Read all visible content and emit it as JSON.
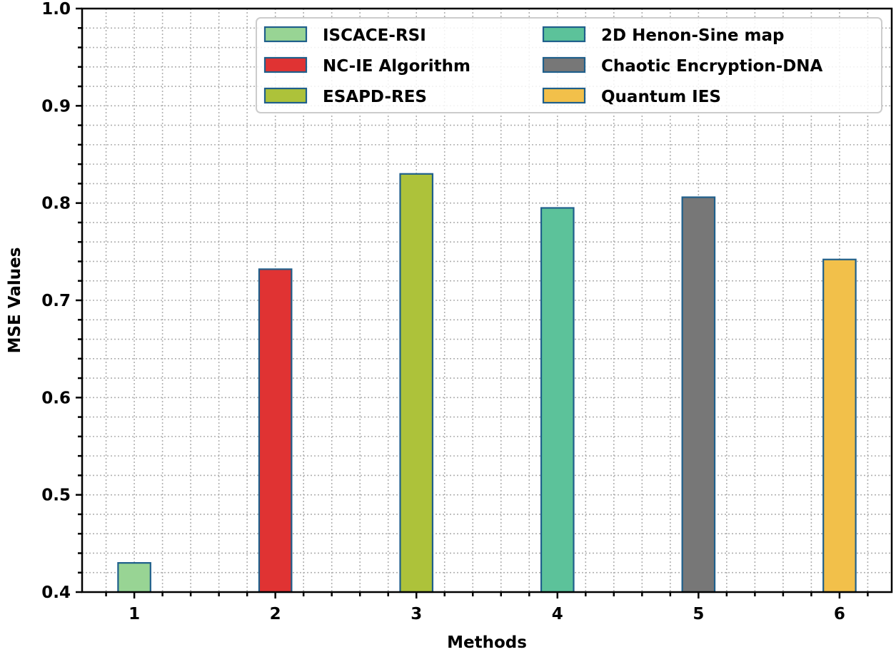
{
  "chart_data": {
    "type": "bar",
    "title": "",
    "xlabel": "Methods",
    "ylabel": "MSE Values",
    "categories": [
      "1",
      "2",
      "3",
      "4",
      "5",
      "6"
    ],
    "x": [
      1,
      2,
      3,
      4,
      5,
      6
    ],
    "series": [
      {
        "name": "ISCACE-RSI",
        "x": 1,
        "value": 0.43,
        "color": "#98d494"
      },
      {
        "name": "NC-IE Algorithm",
        "x": 2,
        "value": 0.732,
        "color": "#e03333"
      },
      {
        "name": "ESAPD-RES",
        "x": 3,
        "value": 0.83,
        "color": "#adc23a"
      },
      {
        "name": "2D Henon-Sine map",
        "x": 4,
        "value": 0.795,
        "color": "#5cc29a"
      },
      {
        "name": "Chaotic Encryption-DNA",
        "x": 5,
        "value": 0.806,
        "color": "#777777"
      },
      {
        "name": "Quantum IES",
        "x": 6,
        "value": 0.742,
        "color": "#f2c04a"
      }
    ],
    "values": [
      0.43,
      0.732,
      0.83,
      0.795,
      0.806,
      0.742
    ],
    "bar_edge_color": "#1f5f8b",
    "bar_width": 0.23,
    "xlim": [
      0.63,
      6.37
    ],
    "ylim": [
      0.4,
      1.0
    ],
    "yticks": [
      "0.4",
      "0.5",
      "0.6",
      "0.7",
      "0.8",
      "0.9",
      "1.0"
    ],
    "ytick_values": [
      0.4,
      0.5,
      0.6,
      0.7,
      0.8,
      0.9,
      1.0
    ],
    "xticks": [
      "1",
      "2",
      "3",
      "4",
      "5",
      "6"
    ],
    "minor_ytick_step": 0.02,
    "minor_xtick_step": 0.2,
    "grid": true,
    "grid_style": "dotted",
    "legend": {
      "position": "upper right",
      "columns": 2,
      "entries": [
        "ISCACE-RSI",
        "NC-IE Algorithm",
        "ESAPD-RES",
        "2D Henon-Sine map",
        "Chaotic Encryption-DNA",
        "Quantum IES"
      ]
    }
  }
}
